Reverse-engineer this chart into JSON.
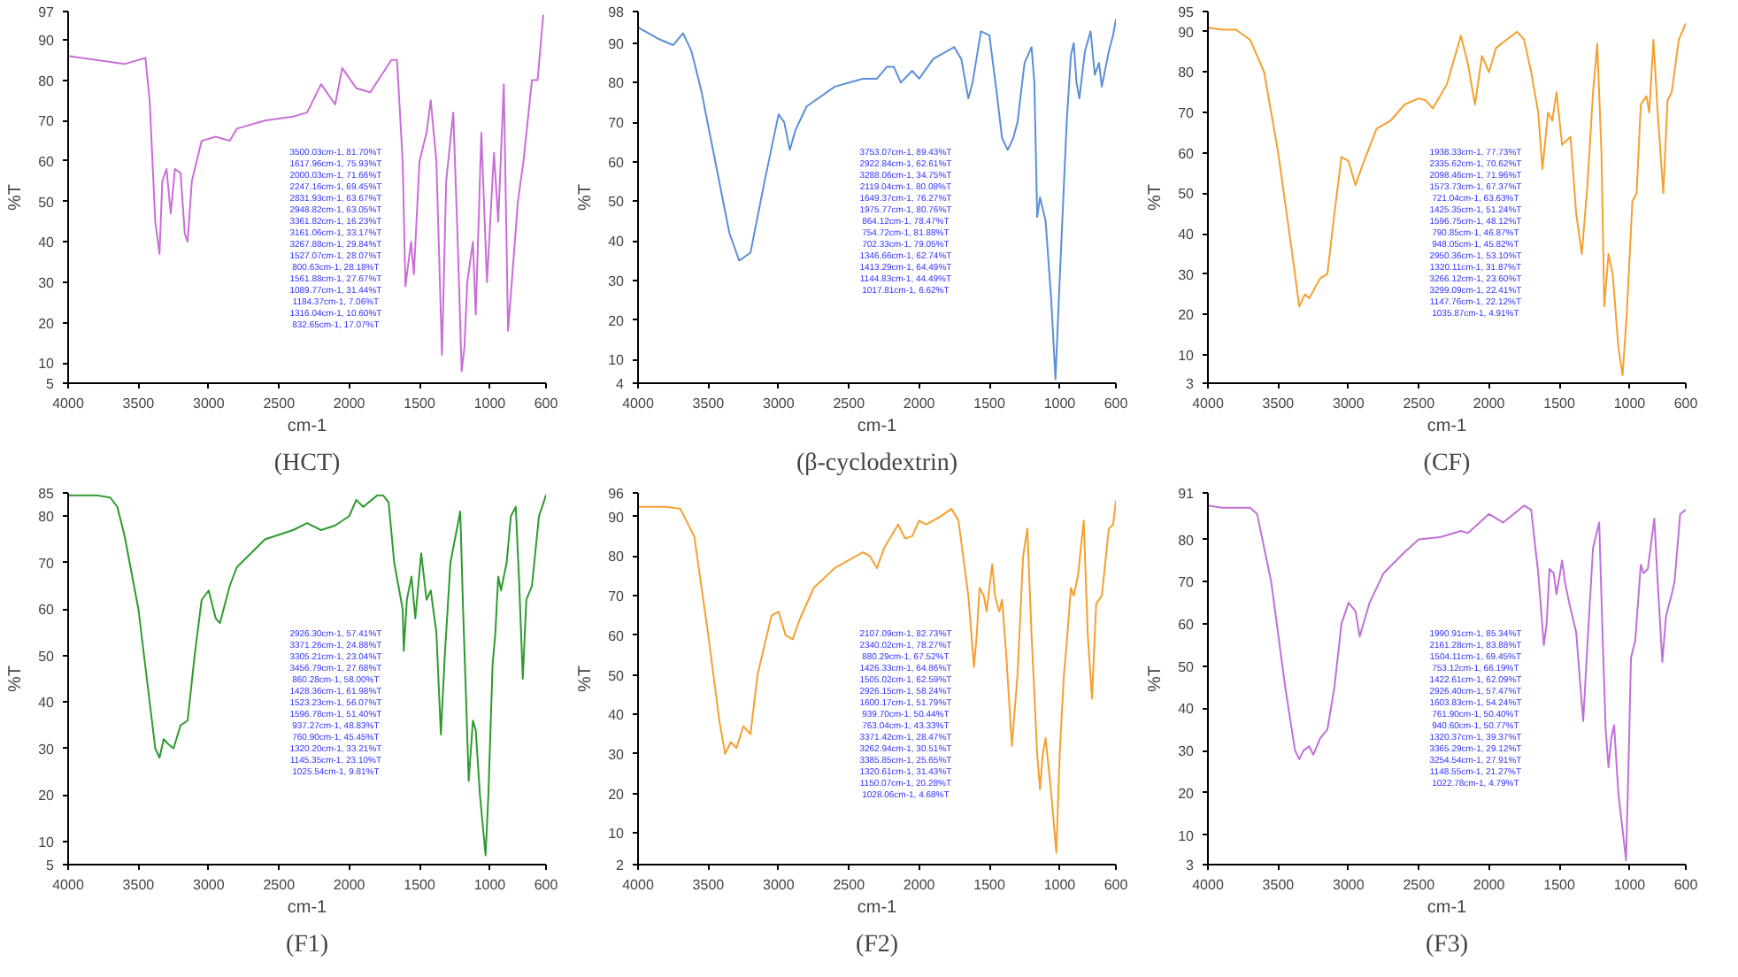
{
  "chart_data": [
    {
      "type": "line",
      "title": "(HCT)",
      "xlabel": "cm-1",
      "ylabel": "%T",
      "xlim": [
        4000,
        600
      ],
      "ylim": [
        5,
        97
      ],
      "xticks": [
        4000,
        3500,
        3000,
        2500,
        2000,
        1500,
        1000,
        600
      ],
      "yticks": [
        5,
        10,
        20,
        30,
        40,
        50,
        60,
        70,
        80,
        90,
        97
      ],
      "grid": false,
      "x": [
        4000,
        3800,
        3600,
        3450,
        3420,
        3380,
        3350,
        3330,
        3300,
        3270,
        3240,
        3200,
        3170,
        3150,
        3120,
        3050,
        2950,
        2850,
        2800,
        2600,
        2400,
        2300,
        2200,
        2100,
        2050,
        1950,
        1850,
        1700,
        1660,
        1620,
        1600,
        1560,
        1540,
        1500,
        1450,
        1420,
        1380,
        1340,
        1310,
        1260,
        1230,
        1200,
        1180,
        1160,
        1120,
        1100,
        1060,
        1020,
        970,
        940,
        900,
        870,
        850,
        800,
        760,
        700,
        660,
        620
      ],
      "series": [
        {
          "color": "#c86fd6",
          "values": [
            86,
            85,
            84,
            85.5,
            75,
            45,
            37,
            55,
            58,
            47,
            58,
            57,
            42,
            40,
            55,
            65,
            66,
            65,
            68,
            70,
            71,
            72,
            79,
            74,
            83,
            78,
            77,
            85,
            85,
            60,
            29,
            40,
            32,
            60,
            67,
            75,
            60,
            12,
            55,
            72,
            42,
            8,
            14,
            30,
            40,
            22,
            67,
            30,
            62,
            45,
            79,
            18,
            27,
            50,
            60,
            80,
            80,
            96
          ]
        }
      ],
      "annotations": [
        "3500.03cm-1, 81.70%T",
        "1617.96cm-1, 75.93%T",
        "2000.03cm-1, 71.66%T",
        "2247.16cm-1, 69.45%T",
        "2831.93cm-1, 63.67%T",
        "2948.82cm-1, 63.05%T",
        "3361.82cm-1, 16.23%T",
        "3161.06cm-1, 33.17%T",
        "3267.88cm-1, 29.84%T",
        "1527.07cm-1, 28.07%T",
        "800.63cm-1, 28.18%T",
        "1561.88cm-1, 27.67%T",
        "1089.77cm-1, 31.44%T",
        "1184.37cm-1, 7.06%T",
        "1316.04cm-1, 10.60%T",
        "832.65cm-1, 17.07%T"
      ]
    },
    {
      "type": "line",
      "title": "(β-cyclodextrin)",
      "xlabel": "cm-1",
      "ylabel": "%T",
      "xlim": [
        4000,
        600
      ],
      "ylim": [
        4,
        98
      ],
      "xticks": [
        4000,
        3500,
        3000,
        2500,
        2000,
        1500,
        1000,
        600
      ],
      "yticks": [
        4,
        10,
        20,
        30,
        40,
        50,
        60,
        70,
        80,
        90,
        98
      ],
      "grid": false,
      "x": [
        4000,
        3850,
        3750,
        3680,
        3620,
        3550,
        3450,
        3350,
        3280,
        3200,
        3100,
        3000,
        2960,
        2920,
        2880,
        2800,
        2600,
        2400,
        2300,
        2230,
        2180,
        2130,
        2050,
        2000,
        1900,
        1750,
        1700,
        1650,
        1620,
        1560,
        1500,
        1450,
        1410,
        1370,
        1330,
        1300,
        1250,
        1200,
        1180,
        1160,
        1140,
        1100,
        1060,
        1030,
        1000,
        950,
        920,
        900,
        880,
        860,
        820,
        780,
        750,
        720,
        700,
        650,
        620,
        600
      ],
      "series": [
        {
          "color": "#5b8fd6",
          "values": [
            94,
            91,
            89.5,
            92.5,
            88,
            78,
            60,
            42,
            35,
            37,
            55,
            72,
            70,
            63,
            68,
            74,
            79,
            81,
            81,
            84,
            84,
            80,
            83,
            81,
            86,
            89,
            86,
            76,
            80,
            93,
            92,
            78,
            66,
            63,
            66,
            70,
            85,
            89,
            80,
            46,
            51,
            45,
            25,
            5,
            30,
            70,
            87,
            90,
            80,
            76,
            88,
            93,
            82,
            85,
            79,
            88,
            92,
            96
          ]
        }
      ],
      "annotations": [
        "3753.07cm-1, 89.43%T",
        "2922.84cm-1, 62.61%T",
        "3288.06cm-1, 34.75%T",
        "2119.04cm-1, 80.08%T",
        "1649.37cm-1, 76.27%T",
        "1975.77cm-1, 80.76%T",
        "864.12cm-1, 78.47%T",
        "754.72cm-1, 81.88%T",
        "702.33cm-1, 79.05%T",
        "1346.66cm-1, 62.74%T",
        "1413.29cm-1, 64.49%T",
        "1144.83cm-1, 44.49%T",
        "1017.81cm-1, 6.62%T"
      ]
    },
    {
      "type": "line",
      "title": "(CF)",
      "xlabel": "cm-1",
      "ylabel": "%T",
      "xlim": [
        4000,
        600
      ],
      "ylim": [
        3,
        95
      ],
      "xticks": [
        4000,
        3500,
        3000,
        2500,
        2000,
        1500,
        1000,
        600
      ],
      "yticks": [
        3,
        10,
        20,
        30,
        40,
        50,
        60,
        70,
        80,
        90,
        95
      ],
      "grid": false,
      "x": [
        4000,
        3900,
        3800,
        3700,
        3600,
        3500,
        3400,
        3350,
        3310,
        3280,
        3200,
        3150,
        3100,
        3050,
        3000,
        2950,
        2900,
        2800,
        2700,
        2600,
        2500,
        2450,
        2400,
        2300,
        2200,
        2150,
        2100,
        2050,
        2000,
        1950,
        1800,
        1750,
        1700,
        1650,
        1620,
        1580,
        1550,
        1520,
        1480,
        1420,
        1380,
        1340,
        1300,
        1260,
        1230,
        1200,
        1180,
        1150,
        1120,
        1080,
        1050,
        1020,
        980,
        950,
        920,
        880,
        860,
        830,
        800,
        760,
        730,
        700,
        650,
        600
      ],
      "series": [
        {
          "color": "#f5a030",
          "values": [
            91,
            90.5,
            90.5,
            88,
            80,
            60,
            35,
            22,
            25,
            24,
            29,
            30,
            45,
            59,
            58,
            52,
            57,
            66,
            68,
            72,
            73.5,
            73,
            71,
            77,
            89,
            82,
            72,
            84,
            80,
            86,
            90,
            88,
            80,
            70,
            56,
            70,
            68,
            75,
            62,
            64,
            45,
            35,
            52,
            75,
            87,
            60,
            22,
            35,
            30,
            12,
            5,
            20,
            48,
            50,
            72,
            74,
            70,
            88,
            70,
            50,
            73,
            75,
            88,
            92
          ]
        }
      ],
      "annotations": [
        "1938.33cm-1, 77.73%T",
        "2335.62cm-1, 70.62%T",
        "2098.46cm-1, 71.96%T",
        "1573.73cm-1, 67.37%T",
        "721.04cm-1, 63.63%T",
        "1425.35cm-1, 51.24%T",
        "1596.75cm-1, 48.12%T",
        "790.85cm-1, 46.87%T",
        "948.05cm-1, 45.82%T",
        "2950.36cm-1, 53.10%T",
        "1320.11cm-1, 31.87%T",
        "3266.12cm-1, 23.60%T",
        "3299.09cm-1, 22.41%T",
        "1147.76cm-1, 22.12%T",
        "1035.87cm-1, 4.91%T"
      ]
    },
    {
      "type": "line",
      "title": "(F1)",
      "xlabel": "cm-1",
      "ylabel": "%T",
      "xlim": [
        4000,
        600
      ],
      "ylim": [
        5,
        85
      ],
      "xticks": [
        4000,
        3500,
        3000,
        2500,
        2000,
        1500,
        1000,
        600
      ],
      "yticks": [
        5,
        10,
        20,
        30,
        40,
        50,
        60,
        70,
        80,
        85
      ],
      "grid": false,
      "x": [
        4000,
        3800,
        3700,
        3650,
        3600,
        3500,
        3420,
        3380,
        3350,
        3320,
        3290,
        3250,
        3200,
        3150,
        3100,
        3050,
        3000,
        2950,
        2920,
        2850,
        2800,
        2600,
        2400,
        2300,
        2200,
        2100,
        2000,
        1950,
        1900,
        1800,
        1760,
        1720,
        1680,
        1620,
        1612,
        1590,
        1557,
        1530,
        1488,
        1450,
        1420,
        1380,
        1348,
        1320,
        1280,
        1210,
        1190,
        1170,
        1150,
        1120,
        1100,
        1070,
        1030,
        1010,
        980,
        960,
        940,
        920,
        880,
        850,
        815,
        790,
        765,
        740,
        700,
        650,
        600
      ],
      "series": [
        {
          "color": "#2e9a2e",
          "values": [
            84.5,
            84.5,
            84,
            82,
            76,
            60,
            40,
            30,
            28,
            32,
            31,
            30,
            35,
            36,
            50,
            62,
            64,
            58,
            57,
            65,
            69,
            75,
            77,
            78.5,
            77,
            78,
            80,
            83.5,
            82,
            84.5,
            84.5,
            83,
            70,
            60,
            51,
            62,
            67,
            58,
            72,
            62,
            64,
            55,
            33,
            50,
            70,
            81,
            60,
            42,
            23,
            36,
            34,
            20,
            7,
            20,
            48,
            55,
            67,
            64,
            70,
            80,
            82,
            65,
            45,
            62,
            65,
            80,
            84.5
          ]
        }
      ],
      "annotations": [
        "2926.30cm-1, 57.41%T",
        "3371.26cm-1, 24.88%T",
        "3305.21cm-1, 23.04%T",
        "3456.79cm-1, 27.68%T",
        "860.28cm-1, 58.00%T",
        "1428.36cm-1, 61.98%T",
        "1523.23cm-1, 56.07%T",
        "1596.78cm-1, 51.40%T",
        "937.27cm-1, 48.83%T",
        "760.90cm-1, 45.45%T",
        "1320.20cm-1, 33.21%T",
        "1145.35cm-1, 23.10%T",
        "1025.54cm-1, 9.81%T"
      ]
    },
    {
      "type": "line",
      "title": "(F2)",
      "xlabel": "cm-1",
      "ylabel": "%T",
      "xlim": [
        4000,
        600
      ],
      "ylim": [
        2,
        96
      ],
      "xticks": [
        4000,
        3500,
        3000,
        2500,
        2000,
        1500,
        1000,
        600
      ],
      "yticks": [
        2,
        10,
        20,
        30,
        40,
        50,
        60,
        70,
        80,
        90,
        96
      ],
      "grid": false,
      "x": [
        4000,
        3800,
        3700,
        3600,
        3500,
        3420,
        3380,
        3340,
        3300,
        3250,
        3200,
        3150,
        3050,
        3000,
        2950,
        2900,
        2850,
        2750,
        2600,
        2500,
        2400,
        2350,
        2300,
        2250,
        2150,
        2100,
        2050,
        2000,
        1950,
        1850,
        1770,
        1720,
        1650,
        1610,
        1590,
        1570,
        1540,
        1520,
        1480,
        1460,
        1430,
        1410,
        1380,
        1340,
        1300,
        1260,
        1230,
        1200,
        1160,
        1140,
        1120,
        1100,
        1060,
        1024,
        1000,
        970,
        950,
        920,
        900,
        870,
        829,
        800,
        770,
        740,
        700,
        650,
        620,
        600
      ],
      "series": [
        {
          "color": "#f5a030",
          "values": [
            92.5,
            92.5,
            92,
            85,
            60,
            38,
            30,
            33,
            31.5,
            37,
            35,
            50,
            65,
            66,
            60,
            59,
            64,
            72,
            77,
            79,
            81,
            80,
            77,
            82,
            88,
            84.5,
            85,
            89,
            88,
            90,
            92,
            89,
            70,
            52,
            60,
            72,
            70,
            66,
            78,
            70,
            66,
            69,
            55,
            32,
            50,
            80,
            87,
            60,
            30,
            21,
            30,
            34,
            20,
            5,
            30,
            50,
            58,
            72,
            70,
            75,
            89,
            60,
            44,
            68,
            70,
            87,
            88,
            94
          ]
        }
      ],
      "annotations": [
        "2107.09cm-1, 82.73%T",
        "2340.02cm-1, 78.27%T",
        "880.29cm-1, 67.52%T",
        "1426.33cm-1, 64.86%T",
        "1505.02cm-1, 62.59%T",
        "2926.15cm-1, 58.24%T",
        "1600.17cm-1, 51.79%T",
        "939.70cm-1, 50.44%T",
        "763.04cm-1, 43.33%T",
        "3371.42cm-1, 28.47%T",
        "3262.94cm-1, 30.51%T",
        "3385.85cm-1, 25.65%T",
        "1320.61cm-1, 31.43%T",
        "1150.07cm-1, 20.28%T",
        "1028.06cm-1, 4.68%T"
      ]
    },
    {
      "type": "line",
      "title": "(F3)",
      "xlabel": "cm-1",
      "ylabel": "%T",
      "xlim": [
        4000,
        600
      ],
      "ylim": [
        3,
        91
      ],
      "xticks": [
        4000,
        3500,
        3000,
        2500,
        2000,
        1500,
        1000,
        600
      ],
      "yticks": [
        3,
        10,
        20,
        30,
        40,
        50,
        60,
        70,
        80,
        91
      ],
      "grid": false,
      "x": [
        4000,
        3900,
        3800,
        3700,
        3650,
        3550,
        3450,
        3380,
        3350,
        3320,
        3280,
        3250,
        3200,
        3150,
        3100,
        3050,
        3000,
        2950,
        2920,
        2850,
        2750,
        2600,
        2500,
        2350,
        2300,
        2200,
        2150,
        2100,
        2000,
        1900,
        1750,
        1700,
        1650,
        1610,
        1590,
        1570,
        1540,
        1520,
        1480,
        1460,
        1430,
        1380,
        1330,
        1300,
        1260,
        1216,
        1190,
        1170,
        1150,
        1130,
        1110,
        1080,
        1025,
        1005,
        990,
        960,
        920,
        900,
        870,
        824,
        800,
        767,
        740,
        700,
        680,
        640,
        600
      ],
      "series": [
        {
          "color": "#c070d8",
          "values": [
            88,
            87.5,
            87.5,
            87.5,
            86,
            70,
            45,
            30,
            28,
            30,
            31,
            29,
            33,
            35,
            45,
            60,
            65,
            63,
            57,
            65,
            72,
            77,
            80,
            80.5,
            81,
            82,
            81.5,
            83,
            86,
            84,
            88,
            87,
            72,
            55,
            60,
            73,
            72,
            67,
            75,
            70,
            65,
            58,
            37,
            55,
            78,
            84,
            55,
            35,
            26,
            33,
            36,
            20,
            4,
            30,
            52,
            56,
            74,
            72,
            73,
            85,
            70,
            51,
            62,
            67,
            70,
            86,
            87
          ]
        }
      ],
      "annotations": [
        "1990.91cm-1, 85.34%T",
        "2161.28cm-1, 83.88%T",
        "1504.11cm-1, 69.45%T",
        "753.12cm-1, 66.19%T",
        "1422.61cm-1, 62.09%T",
        "2926.40cm-1, 57.47%T",
        "1603.83cm-1, 54.24%T",
        "761.90cm-1, 50.40%T",
        "940.60cm-1, 50.77%T",
        "1320.37cm-1, 39.37%T",
        "3365.29cm-1, 29.12%T",
        "3254.54cm-1, 27.91%T",
        "1148.55cm-1, 21.27%T",
        "1022.78cm-1, 4.79%T"
      ]
    }
  ]
}
